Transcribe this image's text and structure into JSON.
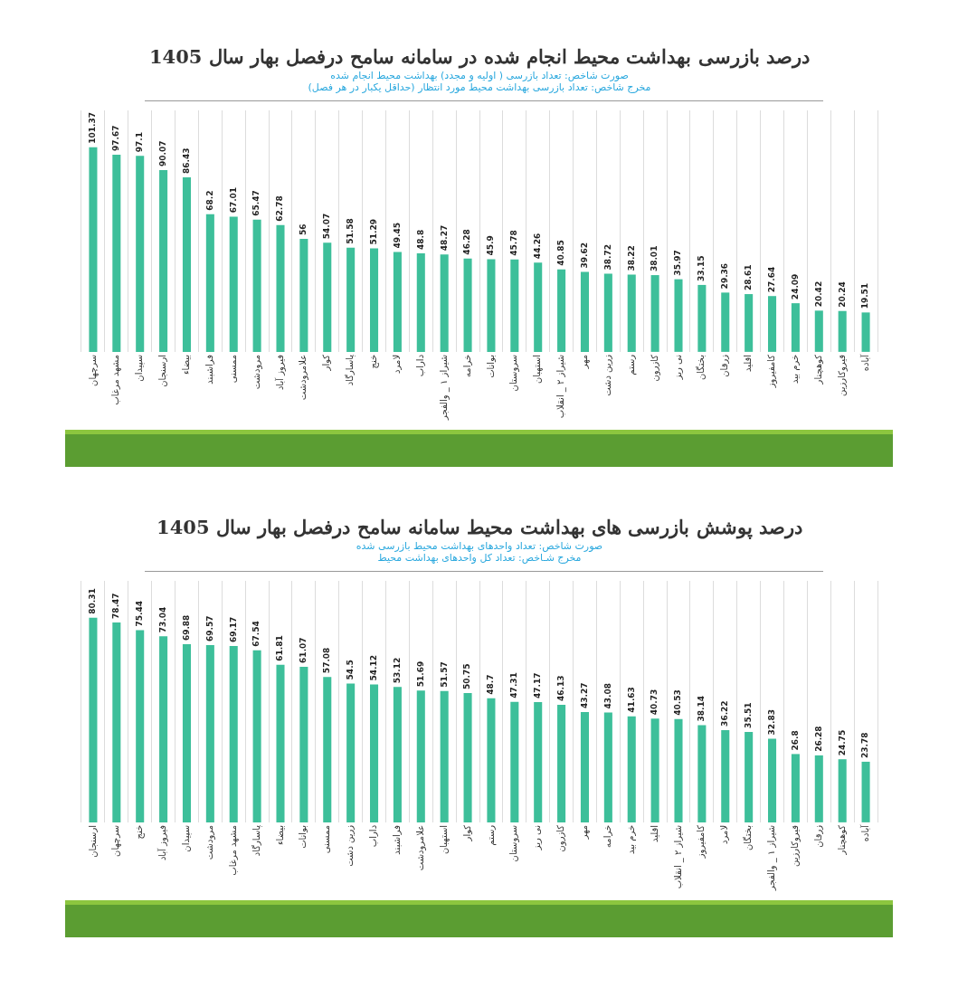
{
  "chart_data": [
    {
      "type": "bar",
      "title": "درصد بازرسی بهداشت محیط انجام شده در سامانه سامح درفصل بهار سال 1405",
      "subtitle": "صورت شاخص: تعداد بازرسی ( اولیه و مجدد) بهداشت محیط انجام شده\nمخرج شاخص: تعداد بازرسی بهداشت محیط مورد انتظار (حداقل یکبار در هر فصل)",
      "categories": [
        "سرچهان",
        "مشهد مرغاب",
        "سپیدان",
        "ارسنجان",
        "بیضاء",
        "فراشبند",
        "ممسنی",
        "مرودشت",
        "فیروز آباد",
        "علامرودشت",
        "کوار",
        "پاسارگاد",
        "خنج",
        "لامرد",
        "داراب",
        "شیراز ۱ _ والفجر",
        "خرامه",
        "بوانات",
        "سروستان",
        "استهبان",
        "شیراز ۲ _ انقلاب",
        "مهر",
        "زرین دشت",
        "رستم",
        "کازرون",
        "نی ریز",
        "بختگان",
        "زرقان",
        "اقلید",
        "کامفیروز",
        "خرم بید",
        "کوهچنار",
        "قیروکارزین",
        "آباده"
      ],
      "values": [
        101.37,
        97.67,
        97.1,
        90.07,
        86.43,
        68.2,
        67.01,
        65.47,
        62.78,
        56,
        54.07,
        51.58,
        51.29,
        49.45,
        48.8,
        48.27,
        46.28,
        45.9,
        45.78,
        44.26,
        40.85,
        39.62,
        38.72,
        38.22,
        38.01,
        35.97,
        33.15,
        29.36,
        28.61,
        27.64,
        24.09,
        20.42,
        20.24,
        19.51
      ],
      "color": "#3dbf9a",
      "data_labels": true,
      "grid": "x",
      "tick_labels": "x"
    },
    {
      "type": "bar",
      "title": "درصد پوشش بازرسی های بهداشت محیط سامانه سامح درفصل بهار سال 1405",
      "subtitle": "صورت شاخص: تعداد واحدهای بهداشت محیط بازرسی شده\nمخرج شـاخص: تعداد کل واحدهای بهداشت محیط",
      "categories": [
        "ارسنجان",
        "سرچهان",
        "خنج",
        "فیروز آباد",
        "سپیدان",
        "مرودشت",
        "مشهد مرغاب",
        "پاسارگاد",
        "بیضاء",
        "بوانات",
        "ممسنی",
        "زرین دشت",
        "داراب",
        "فراشبند",
        "علامرودشت",
        "استهبان",
        "کوار",
        "رستم",
        "سروستان",
        "نی ریز",
        "کازرون",
        "مهر",
        "خرامه",
        "خرم بید",
        "اقلید",
        "شیراز ۲ _ انقلاب",
        "کامفیروز",
        "لامرد",
        "بختگان",
        "شیراز ۱ _ والفجر",
        "قیروکارزین",
        "زرقان",
        "کوهچنار",
        "آباده"
      ],
      "values": [
        80.31,
        78.47,
        75.44,
        73.04,
        69.88,
        69.57,
        69.17,
        67.54,
        61.81,
        61.07,
        57.08,
        54.5,
        54.12,
        53.12,
        51.69,
        51.57,
        50.75,
        48.7,
        47.31,
        47.17,
        46.13,
        43.27,
        43.08,
        41.63,
        40.73,
        40.53,
        38.14,
        36.22,
        35.51,
        32.83,
        26.8,
        26.28,
        24.75,
        23.78
      ],
      "color": "#3dbf9a",
      "data_labels": true,
      "grid": "x",
      "tick_labels": "x"
    }
  ]
}
